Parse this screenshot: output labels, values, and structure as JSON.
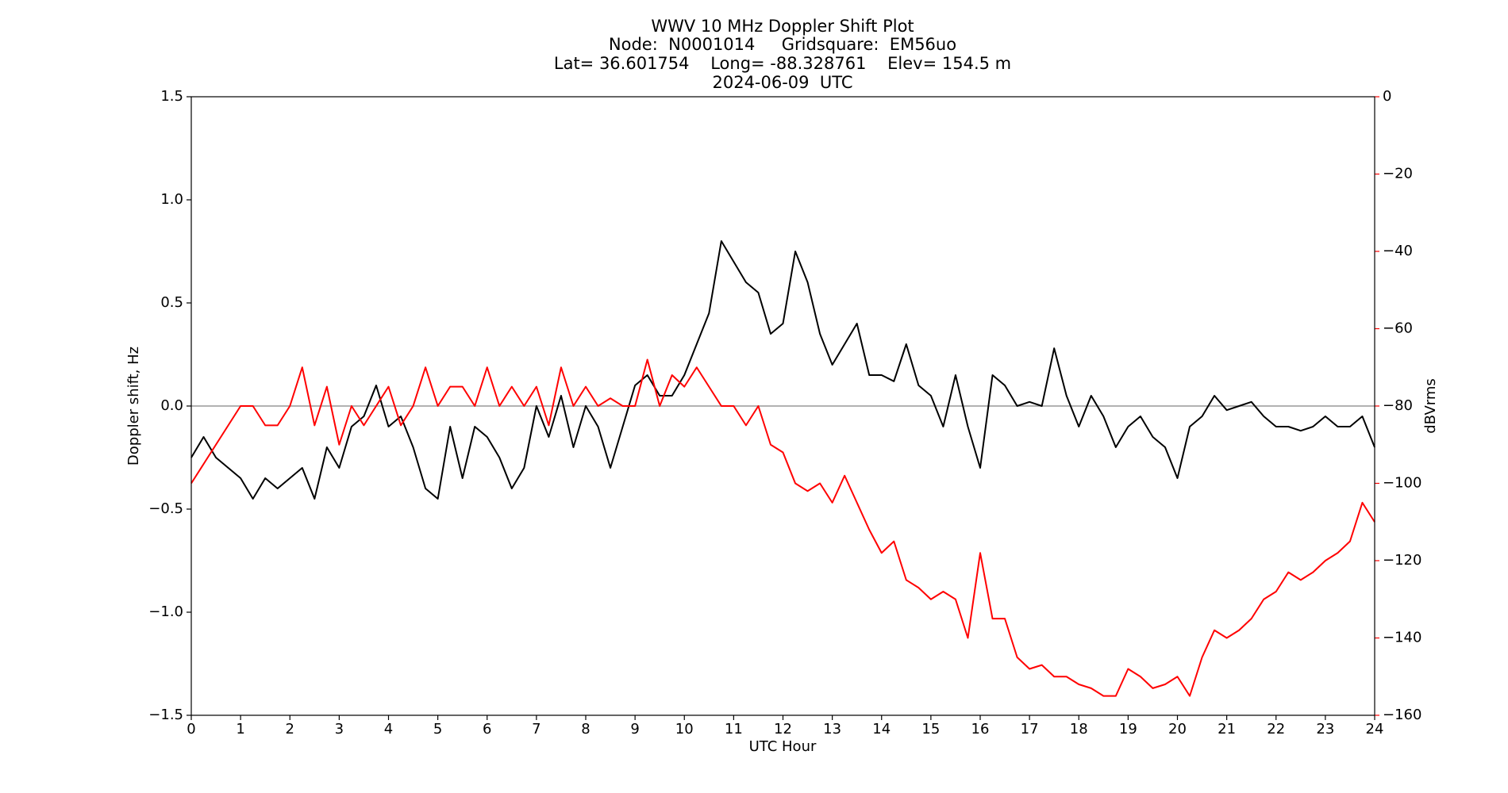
{
  "chart_data": {
    "type": "line",
    "title": [
      "WWV 10 MHz Doppler Shift Plot",
      "Node:  N0001014     Gridsquare:  EM56uo",
      "Lat= 36.601754    Long= -88.328761    Elev= 154.5 m",
      "2024-06-09  UTC"
    ],
    "xlabel": "UTC Hour",
    "ylabel": "Doppler shift, Hz",
    "y2label": "dBVrms",
    "y2color": "#ff0000",
    "x": [
      0,
      0.25,
      0.5,
      0.75,
      1,
      1.25,
      1.5,
      1.75,
      2,
      2.25,
      2.5,
      2.75,
      3,
      3.25,
      3.5,
      3.75,
      4,
      4.25,
      4.5,
      4.75,
      5,
      5.25,
      5.5,
      5.75,
      6,
      6.25,
      6.5,
      6.75,
      7,
      7.25,
      7.5,
      7.75,
      8,
      8.25,
      8.5,
      8.75,
      9,
      9.25,
      9.5,
      9.75,
      10,
      10.25,
      10.5,
      10.75,
      11,
      11.25,
      11.5,
      11.75,
      12,
      12.25,
      12.5,
      12.75,
      13,
      13.25,
      13.5,
      13.75,
      14,
      14.25,
      14.5,
      14.75,
      15,
      15.25,
      15.5,
      15.75,
      16,
      16.25,
      16.5,
      16.75,
      17,
      17.25,
      17.5,
      17.75,
      18,
      18.25,
      18.5,
      18.75,
      19,
      19.25,
      19.5,
      19.75,
      20,
      20.25,
      20.5,
      20.75,
      21,
      21.25,
      21.5,
      21.75,
      22,
      22.25,
      22.5,
      22.75,
      23,
      23.25,
      23.5,
      23.75,
      24
    ],
    "series": [
      {
        "color": "#000000",
        "axis": "y",
        "values": [
          -0.25,
          -0.15,
          -0.25,
          -0.3,
          -0.35,
          -0.45,
          -0.35,
          -0.4,
          -0.35,
          -0.3,
          -0.45,
          -0.2,
          -0.3,
          -0.1,
          -0.05,
          0.1,
          -0.1,
          -0.05,
          -0.2,
          -0.4,
          -0.45,
          -0.1,
          -0.35,
          -0.1,
          -0.15,
          -0.25,
          -0.4,
          -0.3,
          0.0,
          -0.15,
          0.05,
          -0.2,
          0.0,
          -0.1,
          -0.3,
          -0.1,
          0.1,
          0.15,
          0.05,
          0.05,
          0.15,
          0.3,
          0.45,
          0.8,
          0.7,
          0.6,
          0.55,
          0.35,
          0.4,
          0.75,
          0.6,
          0.35,
          0.2,
          0.3,
          0.4,
          0.15,
          0.15,
          0.12,
          0.3,
          0.1,
          0.05,
          -0.1,
          0.15,
          -0.1,
          -0.3,
          0.15,
          0.1,
          0.0,
          0.02,
          0.0,
          0.28,
          0.05,
          -0.1,
          0.05,
          -0.05,
          -0.2,
          -0.1,
          -0.05,
          -0.15,
          -0.2,
          -0.35,
          -0.1,
          -0.05,
          0.05,
          -0.02,
          0.0,
          0.02,
          -0.05,
          -0.1,
          -0.1,
          -0.12,
          -0.1,
          -0.05,
          -0.1,
          -0.1,
          -0.05,
          -0.2
        ]
      },
      {
        "color": "#ff0000",
        "axis": "y2",
        "values": [
          -100,
          -95,
          -90,
          -85,
          -80,
          -80,
          -85,
          -85,
          -80,
          -70,
          -85,
          -75,
          -90,
          -80,
          -85,
          -80,
          -75,
          -85,
          -80,
          -70,
          -80,
          -75,
          -75,
          -80,
          -70,
          -80,
          -75,
          -80,
          -75,
          -85,
          -70,
          -80,
          -75,
          -80,
          -78,
          -80,
          -80,
          -68,
          -80,
          -72,
          -75,
          -70,
          -75,
          -80,
          -80,
          -85,
          -80,
          -90,
          -92,
          -100,
          -102,
          -100,
          -105,
          -98,
          -105,
          -112,
          -118,
          -115,
          -125,
          -127,
          -130,
          -128,
          -130,
          -140,
          -118,
          -135,
          -135,
          -145,
          -148,
          -147,
          -150,
          -150,
          -152,
          -153,
          -155,
          -155,
          -148,
          -150,
          -153,
          -152,
          -150,
          -155,
          -145,
          -138,
          -140,
          -138,
          -135,
          -130,
          -128,
          -123,
          -125,
          -123,
          -120,
          -118,
          -115,
          -105,
          -110
        ]
      }
    ],
    "xlim": [
      0,
      24
    ],
    "xticks": [
      0,
      1,
      2,
      3,
      4,
      5,
      6,
      7,
      8,
      9,
      10,
      11,
      12,
      13,
      14,
      15,
      16,
      17,
      18,
      19,
      20,
      21,
      22,
      23,
      24
    ],
    "ylim": [
      -1.5,
      1.5
    ],
    "yticks": [
      {
        "value": -1.5,
        "label": "−1.5"
      },
      {
        "value": -1.0,
        "label": "−1.0"
      },
      {
        "value": -0.5,
        "label": "−0.5"
      },
      {
        "value": 0,
        "label": "0.0"
      },
      0.5,
      {
        "value": 1.0,
        "label": "1.0"
      },
      1.5
    ],
    "y2lim": [
      -160,
      0
    ],
    "y2ticks": [
      {
        "value": -160,
        "label": "−160"
      },
      {
        "value": -140,
        "label": "−140"
      },
      {
        "value": -120,
        "label": "−120"
      },
      {
        "value": -100,
        "label": "−100"
      },
      {
        "value": -80,
        "label": "−80"
      },
      {
        "value": -60,
        "label": "−60"
      },
      {
        "value": -40,
        "label": "−40"
      },
      {
        "value": -20,
        "label": "−20"
      },
      0
    ],
    "hline": 0,
    "hline_color": "#999999"
  }
}
